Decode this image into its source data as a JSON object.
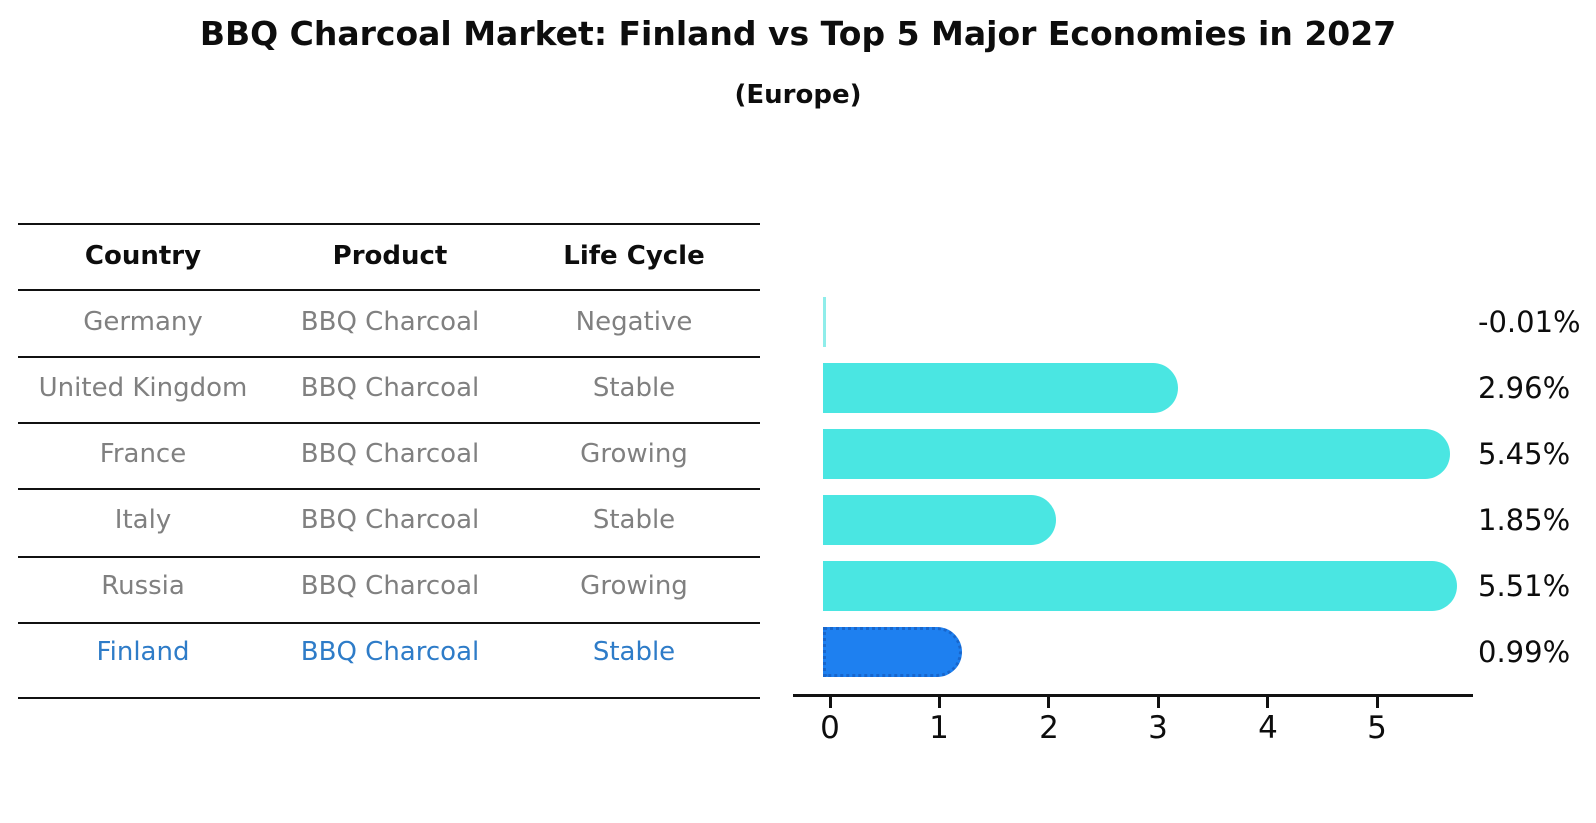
{
  "title": "BBQ Charcoal Market: Finland vs Top 5 Major Economies in 2027",
  "subtitle": "(Europe)",
  "table": {
    "headers": {
      "country": "Country",
      "product": "Product",
      "life_cycle": "Life Cycle"
    },
    "rows": [
      {
        "country": "Germany",
        "product": "BBQ Charcoal",
        "life_cycle": "Negative"
      },
      {
        "country": "United Kingdom",
        "product": "BBQ Charcoal",
        "life_cycle": "Stable"
      },
      {
        "country": "France",
        "product": "BBQ Charcoal",
        "life_cycle": "Growing"
      },
      {
        "country": "Italy",
        "product": "BBQ Charcoal",
        "life_cycle": "Stable"
      },
      {
        "country": "Russia",
        "product": "BBQ Charcoal",
        "life_cycle": "Growing"
      },
      {
        "country": "Finland",
        "product": "BBQ Charcoal",
        "life_cycle": "Stable"
      }
    ],
    "highlight_row": "Finland"
  },
  "chart_data": {
    "type": "bar",
    "orientation": "horizontal",
    "categories": [
      "Germany",
      "United Kingdom",
      "France",
      "Italy",
      "Russia",
      "Finland"
    ],
    "values": [
      -0.01,
      2.96,
      5.45,
      1.85,
      5.51,
      0.99
    ],
    "value_labels": [
      "-0.01%",
      "2.96%",
      "5.45%",
      "1.85%",
      "5.51%",
      "0.99%"
    ],
    "x_ticks": [
      "0",
      "1",
      "2",
      "3",
      "4",
      "5"
    ],
    "xlim": [
      -0.35,
      5.85
    ],
    "grid": false,
    "legend": false,
    "highlight_index": 5,
    "colors": {
      "bar": "#4ae6e2",
      "highlight_bar": "#1e80f0",
      "highlight_border": "#1866cc",
      "axis": "#111111",
      "table_text": "#808080",
      "table_highlight_text": "#2e7cc8"
    }
  }
}
